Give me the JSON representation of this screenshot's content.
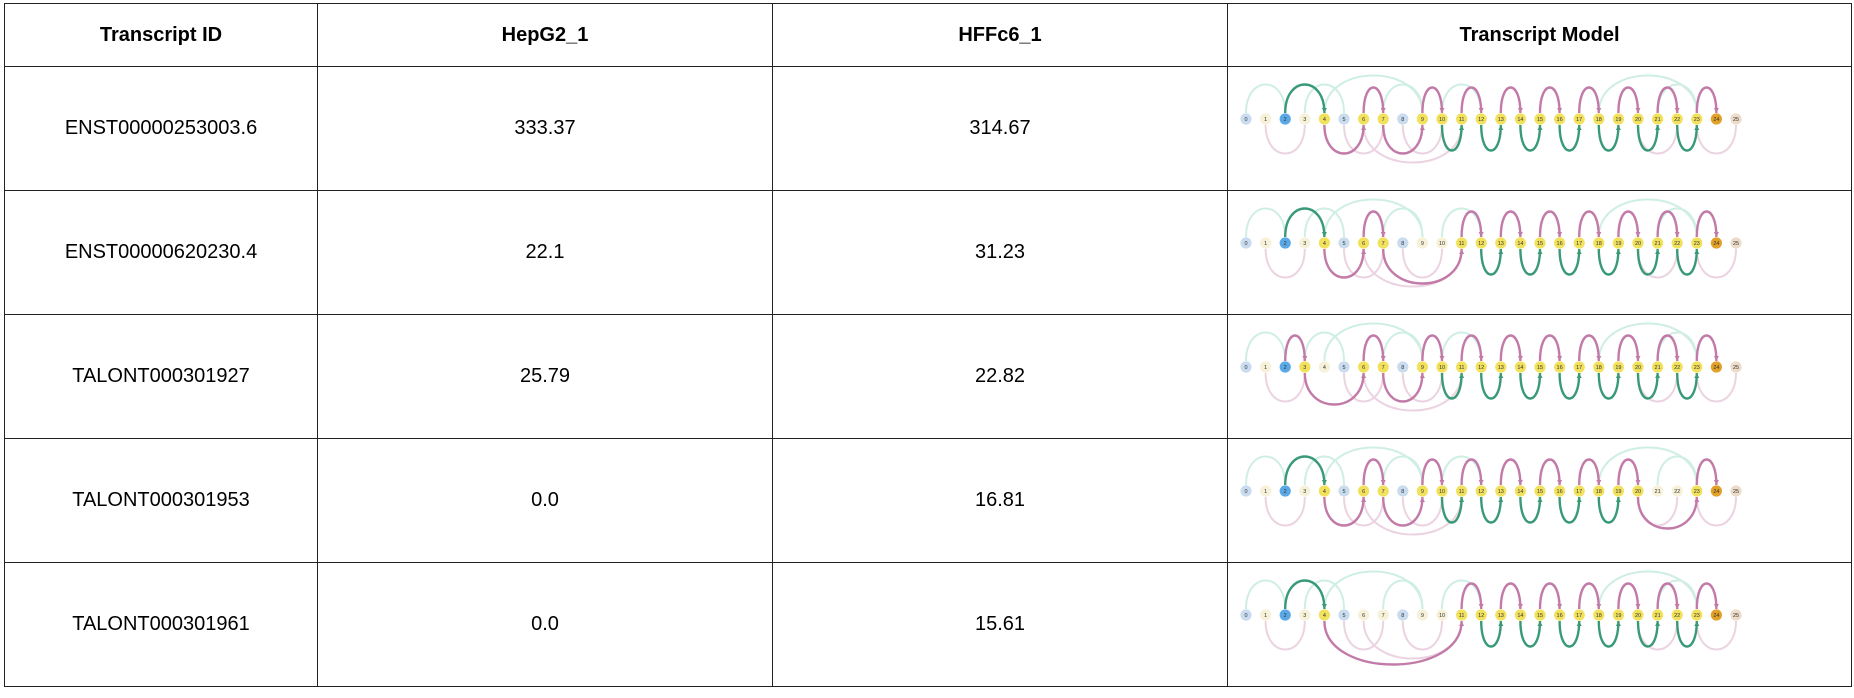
{
  "headers": {
    "transcript_id": "Transcript ID",
    "sample_1": "HepG2_1",
    "sample_2": "HFFc6_1",
    "model": "Transcript Model"
  },
  "colors": {
    "green_arc": "#3a9a78",
    "pink_arc": "#c27aa8",
    "faint_green": "#cfeee4",
    "faint_pink": "#ecd3e2",
    "node_yellow": "#f2e15c",
    "node_blue": "#5aa9e6",
    "node_orange": "#e3a12a",
    "node_lightblue": "#c9dbee",
    "node_cream": "#f6f1d8",
    "node_lastpeach": "#ecdcc8"
  },
  "nodes": [
    "0",
    "1",
    "2",
    "3",
    "4",
    "5",
    "6",
    "7",
    "8",
    "9",
    "10",
    "11",
    "12",
    "13",
    "14",
    "15",
    "16",
    "17",
    "18",
    "19",
    "20",
    "21",
    "22",
    "23",
    "24",
    "25"
  ],
  "rows": [
    {
      "id": "ENST00000253003.6",
      "hepg2": "333.37",
      "hffc6": "314.67",
      "path": [
        2,
        4,
        6,
        7,
        9,
        10,
        11,
        12,
        13,
        14,
        15,
        16,
        17,
        18,
        19,
        20,
        21,
        22,
        23,
        24
      ],
      "active_nodes": [
        2,
        4,
        6,
        7,
        9,
        10,
        11,
        12,
        13,
        14,
        15,
        16,
        17,
        18,
        19,
        20,
        21,
        22,
        23,
        24
      ]
    },
    {
      "id": "ENST00000620230.4",
      "hepg2": "22.1",
      "hffc6": "31.23",
      "path": [
        2,
        4,
        6,
        7,
        11,
        12,
        13,
        14,
        15,
        16,
        17,
        18,
        19,
        20,
        21,
        22,
        23,
        24
      ],
      "active_nodes": [
        2,
        4,
        6,
        7,
        11,
        12,
        13,
        14,
        15,
        16,
        17,
        18,
        19,
        20,
        21,
        22,
        23,
        24
      ]
    },
    {
      "id": "TALONT000301927",
      "hepg2": "25.79",
      "hffc6": "22.82",
      "path": [
        2,
        3,
        6,
        7,
        9,
        10,
        11,
        12,
        13,
        14,
        15,
        16,
        17,
        18,
        19,
        20,
        21,
        22,
        23,
        24
      ],
      "active_nodes": [
        2,
        3,
        6,
        7,
        9,
        10,
        11,
        12,
        13,
        14,
        15,
        16,
        17,
        18,
        19,
        20,
        21,
        22,
        23,
        24
      ]
    },
    {
      "id": "TALONT000301953",
      "hepg2": "0.0",
      "hffc6": "16.81",
      "path": [
        2,
        4,
        6,
        7,
        9,
        10,
        11,
        12,
        13,
        14,
        15,
        16,
        17,
        18,
        19,
        20,
        23,
        24
      ],
      "active_nodes": [
        2,
        4,
        6,
        7,
        9,
        10,
        11,
        12,
        13,
        14,
        15,
        16,
        17,
        18,
        19,
        20,
        23,
        24
      ]
    },
    {
      "id": "TALONT000301961",
      "hepg2": "0.0",
      "hffc6": "15.61",
      "path": [
        2,
        4,
        11,
        12,
        13,
        14,
        15,
        16,
        17,
        18,
        19,
        20,
        21,
        22,
        23,
        24
      ],
      "active_nodes": [
        2,
        4,
        11,
        12,
        13,
        14,
        15,
        16,
        17,
        18,
        19,
        20,
        21,
        22,
        23,
        24
      ]
    }
  ]
}
